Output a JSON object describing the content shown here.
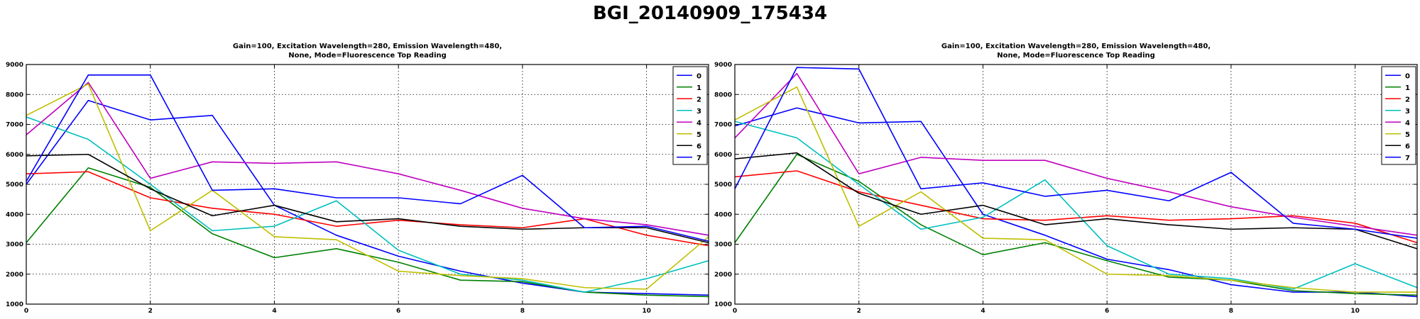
{
  "suptitle": "BGI_20140909_175434",
  "series_colors": [
    "#0000ff",
    "#008000",
    "#ff0000",
    "#00bfbf",
    "#bf00bf",
    "#bfbf00",
    "#000000",
    "#0000ff"
  ],
  "chart_data": [
    {
      "type": "line",
      "title_line1": "Gain=100, Excitation Wavelength=280, Emission Wavelength=480,",
      "title_line2": "None, Mode=Fluorescence Top Reading",
      "xlim": [
        0,
        11
      ],
      "ylim": [
        1000,
        9000
      ],
      "xticks": [
        0,
        2,
        4,
        6,
        8,
        10
      ],
      "yticks": [
        1000,
        2000,
        3000,
        4000,
        5000,
        6000,
        7000,
        8000,
        9000
      ],
      "grid": true,
      "legend_position": "top-right",
      "x": [
        0,
        1,
        2,
        3,
        4,
        5,
        6,
        7,
        8,
        9,
        10,
        11
      ],
      "series": [
        {
          "name": "0",
          "values": [
            5000,
            7800,
            7150,
            7300,
            4300,
            3300,
            2600,
            2100,
            1700,
            1400,
            1350,
            1300
          ]
        },
        {
          "name": "1",
          "values": [
            3050,
            5550,
            4900,
            3350,
            2550,
            2850,
            2400,
            1800,
            1750,
            1400,
            1300,
            1250
          ]
        },
        {
          "name": "2",
          "values": [
            5350,
            5420,
            4550,
            4200,
            4000,
            3600,
            3800,
            3650,
            3550,
            3850,
            3300,
            2950
          ]
        },
        {
          "name": "3",
          "values": [
            7250,
            6500,
            5000,
            3450,
            3600,
            4450,
            2800,
            2000,
            1800,
            1400,
            1850,
            2450
          ]
        },
        {
          "name": "4",
          "values": [
            6650,
            8400,
            5200,
            5750,
            5700,
            5750,
            5350,
            4800,
            4200,
            3850,
            3650,
            3300
          ]
        },
        {
          "name": "5",
          "values": [
            7300,
            8350,
            3450,
            4800,
            3250,
            3150,
            2100,
            1950,
            1850,
            1550,
            1500,
            3250
          ]
        },
        {
          "name": "6",
          "values": [
            5950,
            6000,
            4850,
            3950,
            4300,
            3750,
            3850,
            3600,
            3500,
            3550,
            3550,
            3050
          ]
        },
        {
          "name": "7",
          "values": [
            5100,
            8650,
            8650,
            4800,
            4850,
            4550,
            4550,
            4350,
            5300,
            3550,
            3600,
            3100
          ]
        }
      ]
    },
    {
      "type": "line",
      "title_line1": "Gain=100, Excitation Wavelength=280, Emission Wavelength=480,",
      "title_line2": "None, Mode=Fluorescence Top Reading",
      "xlim": [
        0,
        11
      ],
      "ylim": [
        1000,
        9000
      ],
      "xticks": [
        0,
        2,
        4,
        6,
        8,
        10
      ],
      "yticks": [
        1000,
        2000,
        3000,
        4000,
        5000,
        6000,
        7000,
        8000,
        9000
      ],
      "grid": true,
      "legend_position": "top-right",
      "x": [
        0,
        1,
        2,
        3,
        4,
        5,
        6,
        7,
        8,
        9,
        10,
        11
      ],
      "series": [
        {
          "name": "0",
          "values": [
            6950,
            7550,
            7050,
            7100,
            4000,
            3300,
            2500,
            2150,
            1650,
            1400,
            1400,
            1250
          ]
        },
        {
          "name": "1",
          "values": [
            3050,
            6000,
            5100,
            3650,
            2650,
            3050,
            2450,
            1900,
            1800,
            1450,
            1350,
            1300
          ]
        },
        {
          "name": "2",
          "values": [
            5250,
            5450,
            4750,
            4300,
            3850,
            3800,
            3950,
            3800,
            3850,
            3950,
            3700,
            3050
          ]
        },
        {
          "name": "3",
          "values": [
            7100,
            6550,
            5000,
            3500,
            3900,
            5150,
            2950,
            2000,
            1850,
            1500,
            2350,
            1550
          ]
        },
        {
          "name": "4",
          "values": [
            6550,
            8700,
            5350,
            5900,
            5800,
            5800,
            5200,
            4750,
            4250,
            3900,
            3600,
            3300
          ]
        },
        {
          "name": "5",
          "values": [
            7150,
            8250,
            3600,
            4750,
            3200,
            3150,
            2000,
            1950,
            1800,
            1550,
            1400,
            1400
          ]
        },
        {
          "name": "6",
          "values": [
            5850,
            6050,
            4700,
            4000,
            4300,
            3650,
            3850,
            3650,
            3500,
            3550,
            3500,
            2850
          ]
        },
        {
          "name": "7",
          "values": [
            4850,
            8900,
            8850,
            4850,
            5050,
            4600,
            4800,
            4450,
            5400,
            3700,
            3500,
            3200
          ]
        }
      ]
    }
  ]
}
